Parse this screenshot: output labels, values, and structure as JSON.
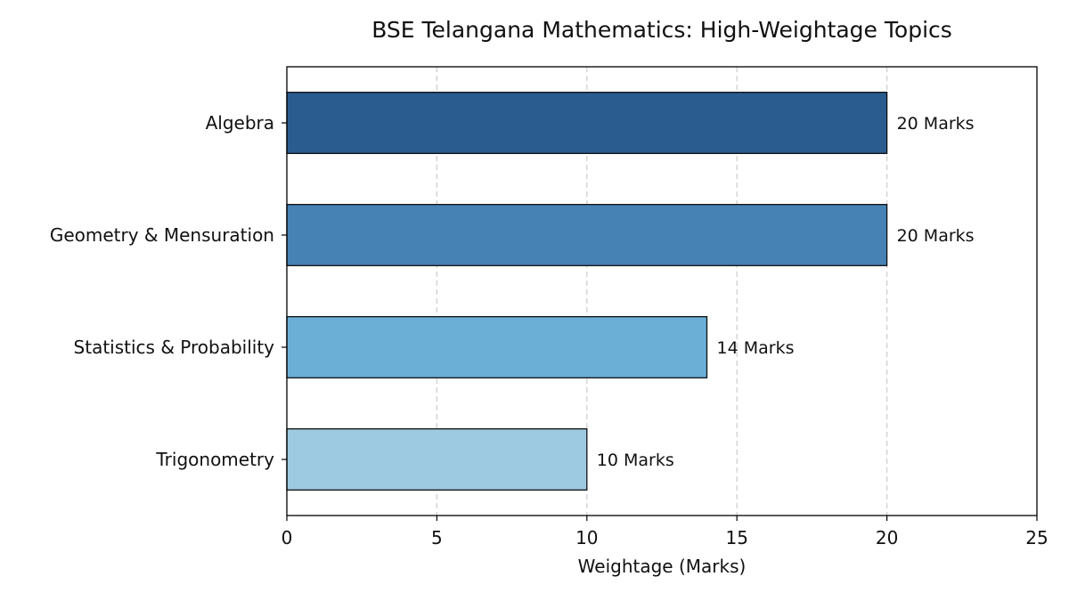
{
  "chart_data": {
    "type": "bar",
    "orientation": "horizontal",
    "title": "BSE Telangana Mathematics: High-Weightage Topics",
    "xlabel": "Weightage (Marks)",
    "ylabel": "",
    "xlim": [
      0,
      25
    ],
    "xticks": [
      0,
      5,
      10,
      15,
      20,
      25
    ],
    "grid": "x-dashed",
    "categories": [
      "Algebra",
      "Geometry & Mensuration",
      "Statistics & Probability",
      "Trigonometry"
    ],
    "values": [
      20,
      20,
      14,
      10
    ],
    "data_labels": [
      "20 Marks",
      "20 Marks",
      "14 Marks",
      "10 Marks"
    ],
    "colors": [
      "#2b5c8f",
      "#4682b4",
      "#6baed6",
      "#9ecae1"
    ]
  }
}
